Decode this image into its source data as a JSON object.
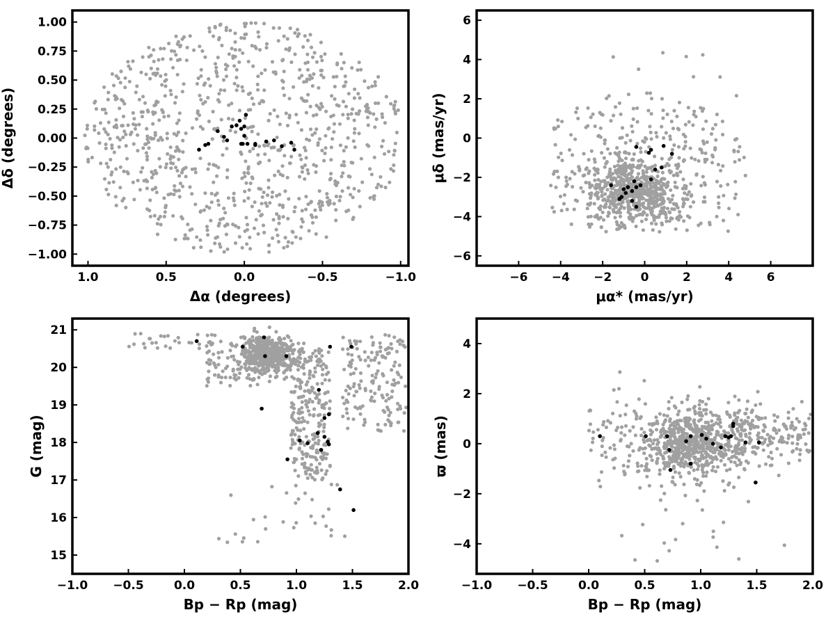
{
  "colors": {
    "field": "#a0a0a0",
    "member": "#000000",
    "axis": "#000000"
  },
  "chart_data": [
    {
      "type": "scatter",
      "xlabel": "Δα (degrees)",
      "ylabel": "Δδ (degrees)",
      "xlim": [
        1.1,
        -1.05
      ],
      "ylim": [
        -1.1,
        1.1
      ],
      "xticks": [
        1.0,
        0.5,
        0.0,
        -0.5,
        -1.0
      ],
      "xtick_labels": [
        "1.0",
        "0.5",
        "0.0",
        "−0.5",
        "−1.0"
      ],
      "yticks": [
        1.0,
        0.75,
        0.5,
        0.25,
        0.0,
        -0.25,
        -0.5,
        -0.75,
        -1.0
      ],
      "ytick_labels": [
        "1.00",
        "0.75",
        "0.50",
        "0.25",
        "0.00",
        "−0.25",
        "−0.50",
        "−0.75",
        "−1.00"
      ],
      "series": [
        {
          "name": "",
          "color": "#a0a0a0",
          "distribution": "uniform within circle of radius 1.0 deg centred at (0, 0); ~900 stars",
          "x": [],
          "y": []
        },
        {
          "name": "",
          "color": "#000000",
          "x": [
            -0.01,
            0.03,
            0.05,
            0.08,
            0.17,
            0.13,
            0.11,
            0.02,
            -0.02,
            -0.07,
            0.0,
            0.02,
            -0.07,
            0.23,
            0.25,
            0.29,
            -0.14,
            -0.14,
            -0.19,
            -0.24,
            -0.3,
            -0.32,
            0.0,
            0.01
          ],
          "y": [
            0.2,
            0.15,
            0.11,
            0.1,
            0.06,
            0.01,
            -0.02,
            -0.05,
            -0.05,
            -0.06,
            0.1,
            0.08,
            -0.05,
            -0.05,
            -0.06,
            -0.1,
            -0.03,
            -0.03,
            -0.02,
            -0.07,
            -0.04,
            -0.1,
            0.02,
            -0.05
          ]
        }
      ]
    },
    {
      "type": "scatter",
      "xlabel": "μα* (mas/yr)",
      "ylabel": "μδ (mas/yr)",
      "xlim": [
        -8,
        8
      ],
      "ylim": [
        -6.5,
        6.5
      ],
      "xticks": [
        -6,
        -4,
        -2,
        0,
        2,
        4,
        6
      ],
      "xtick_labels": [
        "−6",
        "−4",
        "−2",
        "0",
        "2",
        "4",
        "6"
      ],
      "yticks": [
        6,
        4,
        2,
        0,
        -2,
        -4,
        -6
      ],
      "ytick_labels": [
        "6",
        "4",
        "2",
        "0",
        "−2",
        "−4",
        "−6"
      ],
      "series": [
        {
          "name": "",
          "color": "#a0a0a0",
          "distribution": "field stars roughly within x −4.6 to 4.9, y −4.9 to 4.5, concentrated near (−0.5, −2.5); ~900 stars",
          "x": [],
          "y": []
        },
        {
          "name": "",
          "color": "#000000",
          "x": [
            -0.4,
            0.3,
            0.9,
            1.3,
            -1.6,
            -0.8,
            -0.5,
            -0.4,
            -0.6,
            -1.0,
            -1.1,
            0.5,
            0.8,
            0.2,
            0.3,
            -0.2,
            -0.4,
            -0.6,
            -1.2,
            -0.9
          ],
          "y": [
            -0.45,
            -0.6,
            -0.4,
            -0.8,
            -2.4,
            -2.5,
            -2.2,
            -2.5,
            -2.7,
            -2.6,
            -3.0,
            -1.6,
            -1.5,
            -0.75,
            -2.1,
            -2.4,
            -3.5,
            -3.2,
            -3.1,
            -2.8
          ]
        }
      ]
    },
    {
      "type": "scatter",
      "xlabel": "Bp − Rp (mag)",
      "ylabel": "G (mag)",
      "xlim": [
        -1.0,
        2.0
      ],
      "ylim": [
        14.5,
        21.3
      ],
      "xticks": [
        -1.0,
        -0.5,
        0.0,
        0.5,
        1.0,
        1.5,
        2.0
      ],
      "xtick_labels": [
        "−1.0",
        "−0.5",
        "0.0",
        "0.5",
        "1.0",
        "1.5",
        "2.0"
      ],
      "yticks": [
        21,
        20,
        19,
        18,
        17,
        16,
        15
      ],
      "ytick_labels": [
        "21",
        "20",
        "19",
        "18",
        "17",
        "16",
        "15"
      ],
      "series": [
        {
          "name": "",
          "color": "#a0a0a0",
          "distribution": "field stars: dense clump at Bp−Rp 0.55–0.95, G 20.0–20.8; band down to G ~17 near Bp−Rp 1.1–1.3; red faint stars at Bp−Rp 1.4–2.0",
          "x": [],
          "y": []
        },
        {
          "name": "",
          "color": "#000000",
          "x": [
            0.11,
            0.52,
            0.71,
            0.72,
            0.91,
            1.3,
            1.49,
            1.2,
            0.69,
            1.29,
            1.25,
            1.19,
            1.03,
            1.1,
            1.25,
            1.28,
            1.22,
            1.29,
            0.92,
            1.39,
            1.51
          ],
          "y": [
            20.7,
            20.55,
            20.8,
            20.3,
            20.3,
            20.55,
            20.55,
            19.4,
            18.9,
            18.75,
            18.65,
            18.25,
            18.05,
            17.98,
            18.15,
            18.02,
            17.8,
            17.95,
            17.55,
            16.75,
            16.2
          ]
        }
      ]
    },
    {
      "type": "scatter",
      "xlabel": "Bp − Rp (mag)",
      "ylabel": "ϖ (mas)",
      "xlim": [
        -1.0,
        2.0
      ],
      "ylim": [
        -5.2,
        5.0
      ],
      "xticks": [
        -1.0,
        -0.5,
        0.0,
        0.5,
        1.0,
        1.5,
        2.0
      ],
      "xtick_labels": [
        "−1.0",
        "−0.5",
        "0.0",
        "0.5",
        "1.0",
        "1.5",
        "2.0"
      ],
      "yticks": [
        4,
        2,
        0,
        -2,
        -4
      ],
      "ytick_labels": [
        "4",
        "2",
        "0",
        "−2",
        "−4"
      ],
      "series": [
        {
          "name": "",
          "color": "#a0a0a0",
          "distribution": "field stars centred on parallax ~0 with scatter ±1.5 mas; densest at Bp−Rp 0.6–1.2",
          "x": [],
          "y": []
        },
        {
          "name": "",
          "color": "#000000",
          "x": [
            0.1,
            0.51,
            0.7,
            0.72,
            0.91,
            1.01,
            1.11,
            1.18,
            1.22,
            1.25,
            1.27,
            1.29,
            1.29,
            1.4,
            1.52,
            0.91,
            0.73,
            1.49,
            0.87,
            1.05
          ],
          "y": [
            0.3,
            0.3,
            0.3,
            -0.25,
            0.3,
            0.35,
            0.0,
            -0.15,
            0.3,
            0.25,
            0.3,
            0.8,
            0.7,
            0.05,
            0.05,
            -0.8,
            -1.05,
            -1.55,
            0.1,
            0.2
          ]
        }
      ]
    }
  ]
}
